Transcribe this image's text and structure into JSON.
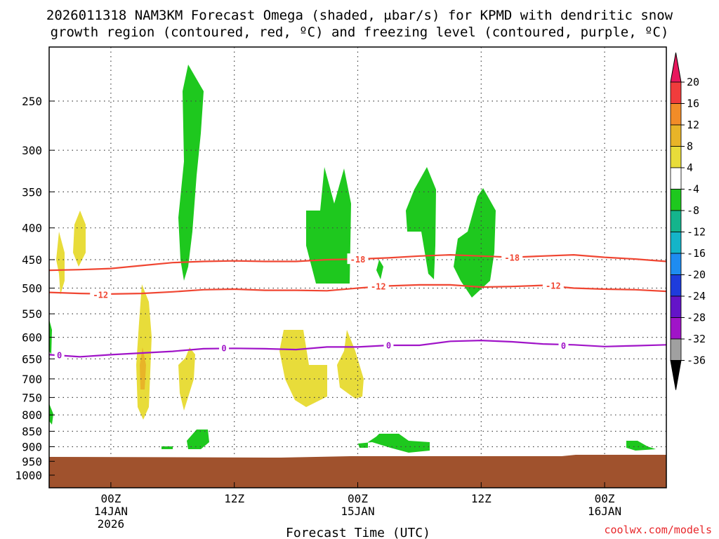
{
  "chart_data": {
    "type": "heatmap",
    "title_lines": [
      "2026011318 NAM3KM Forecast Omega (shaded, μbar/s) for KPMD with dendritic snow",
      "growth region (contoured, red, ºC) and freezing level (contoured, purple, ºC)"
    ],
    "xlabel": "Forecast Time (UTC)",
    "ylabel": "",
    "credit": "coolwx.com/models",
    "x_range_hours": [
      -6,
      54
    ],
    "x_ticks": [
      {
        "hour": 0,
        "lines": [
          "00Z",
          "14JAN",
          "2026"
        ]
      },
      {
        "hour": 12,
        "lines": [
          "12Z"
        ]
      },
      {
        "hour": 24,
        "lines": [
          "00Z",
          "15JAN"
        ]
      },
      {
        "hour": 36,
        "lines": [
          "12Z"
        ]
      },
      {
        "hour": 48,
        "lines": [
          "00Z",
          "16JAN"
        ]
      }
    ],
    "y_scale": "log-pressure",
    "y_range_hpa": [
      1060,
      200
    ],
    "y_ticks": [
      250,
      300,
      350,
      400,
      450,
      500,
      550,
      600,
      650,
      700,
      750,
      800,
      850,
      900,
      950,
      1000
    ],
    "colorbar": {
      "labels": [
        "20",
        "16",
        "12",
        "8",
        "4",
        "-4",
        "-8",
        "-12",
        "-16",
        "-20",
        "-24",
        "-28",
        "-32",
        "-36"
      ],
      "colors": [
        "#e8175d",
        "#f03c3c",
        "#f28c28",
        "#e8b428",
        "#e8dc3a",
        "#ffffff",
        "#1ec81e",
        "#14b48c",
        "#14b4c8",
        "#1e8cf0",
        "#1e3cdc",
        "#6414c8",
        "#a014c8",
        "#a0a0a0",
        "#000000"
      ]
    },
    "contours": [
      {
        "name": "-18",
        "color": "#f04632",
        "points": [
          [
            -6,
            468
          ],
          [
            -3,
            467
          ],
          [
            0,
            465
          ],
          [
            3,
            460
          ],
          [
            6,
            455
          ],
          [
            9,
            453
          ],
          [
            12,
            452
          ],
          [
            15,
            453
          ],
          [
            18,
            453
          ],
          [
            21,
            450
          ],
          [
            24,
            449
          ],
          [
            27,
            447
          ],
          [
            30,
            444
          ],
          [
            33,
            442
          ],
          [
            36,
            444
          ],
          [
            39,
            446
          ],
          [
            42,
            444
          ],
          [
            45,
            442
          ],
          [
            48,
            446
          ],
          [
            51,
            449
          ],
          [
            54,
            453
          ]
        ],
        "labels": [
          [
            24,
            449
          ],
          [
            39,
            446
          ]
        ]
      },
      {
        "name": "-12",
        "color": "#f04632",
        "points": [
          [
            -6,
            508
          ],
          [
            -3,
            510
          ],
          [
            0,
            511
          ],
          [
            3,
            510
          ],
          [
            6,
            507
          ],
          [
            9,
            503
          ],
          [
            12,
            502
          ],
          [
            15,
            504
          ],
          [
            18,
            504
          ],
          [
            21,
            505
          ],
          [
            24,
            500
          ],
          [
            27,
            496
          ],
          [
            30,
            494
          ],
          [
            33,
            494
          ],
          [
            36,
            498
          ],
          [
            39,
            497
          ],
          [
            42,
            495
          ],
          [
            45,
            500
          ],
          [
            48,
            502
          ],
          [
            51,
            503
          ],
          [
            54,
            506
          ]
        ],
        "labels": [
          [
            -1,
            512
          ],
          [
            26,
            496
          ],
          [
            43,
            495
          ]
        ]
      },
      {
        "name": "0",
        "color": "#a014c8",
        "points": [
          [
            -6,
            640
          ],
          [
            -3,
            645
          ],
          [
            0,
            640
          ],
          [
            3,
            636
          ],
          [
            6,
            632
          ],
          [
            9,
            626
          ],
          [
            12,
            625
          ],
          [
            15,
            626
          ],
          [
            18,
            628
          ],
          [
            21,
            622
          ],
          [
            24,
            622
          ],
          [
            27,
            618
          ],
          [
            30,
            618
          ],
          [
            33,
            609
          ],
          [
            36,
            607
          ],
          [
            39,
            610
          ],
          [
            42,
            615
          ],
          [
            45,
            617
          ],
          [
            48,
            621
          ],
          [
            51,
            619
          ],
          [
            54,
            617
          ]
        ],
        "labels": [
          [
            -5,
            640
          ],
          [
            11,
            624
          ],
          [
            27,
            617
          ],
          [
            44,
            618
          ]
        ]
      }
    ],
    "omega_regions": [
      {
        "category": "-4 to -8",
        "color": "#1ec81e"
      },
      {
        "category": "4 to 8",
        "color": "#e8dc3a"
      },
      {
        "category": "8 to 12",
        "color": "#e8b428"
      }
    ],
    "terrain_color": "#a0522d"
  }
}
